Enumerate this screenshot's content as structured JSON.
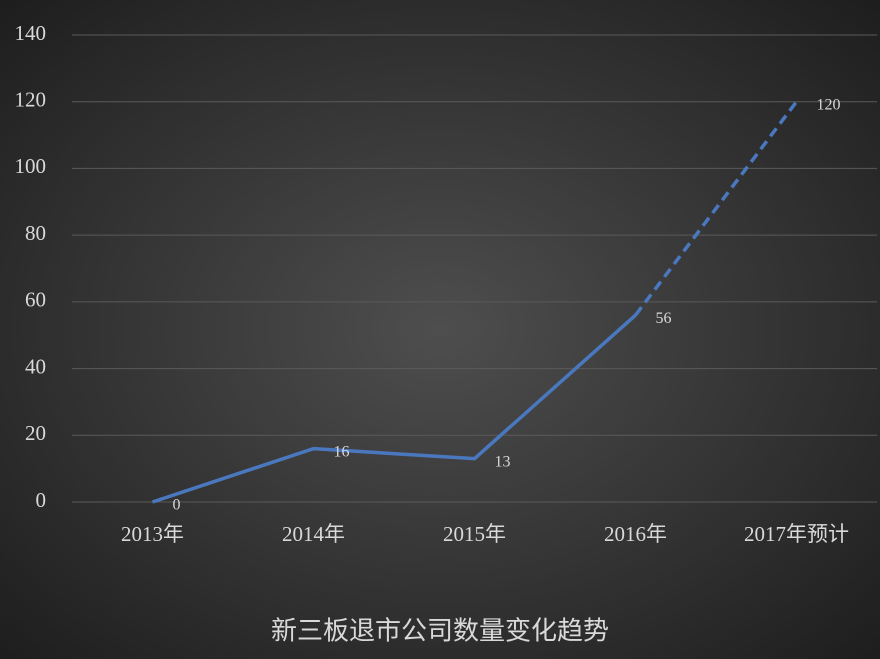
{
  "chart_data": {
    "type": "line",
    "title": "新三板退市公司数量变化趋势",
    "categories": [
      "2013年",
      "2014年",
      "2015年",
      "2016年",
      "2017年预计"
    ],
    "values": [
      0,
      16,
      13,
      56,
      120
    ],
    "line_style": [
      "solid",
      "solid",
      "solid",
      "dashed"
    ],
    "color": "#4a78bf",
    "ylim": [
      0,
      140
    ],
    "yticks": [
      0,
      20,
      40,
      60,
      80,
      100,
      120,
      140
    ],
    "grid": true
  }
}
